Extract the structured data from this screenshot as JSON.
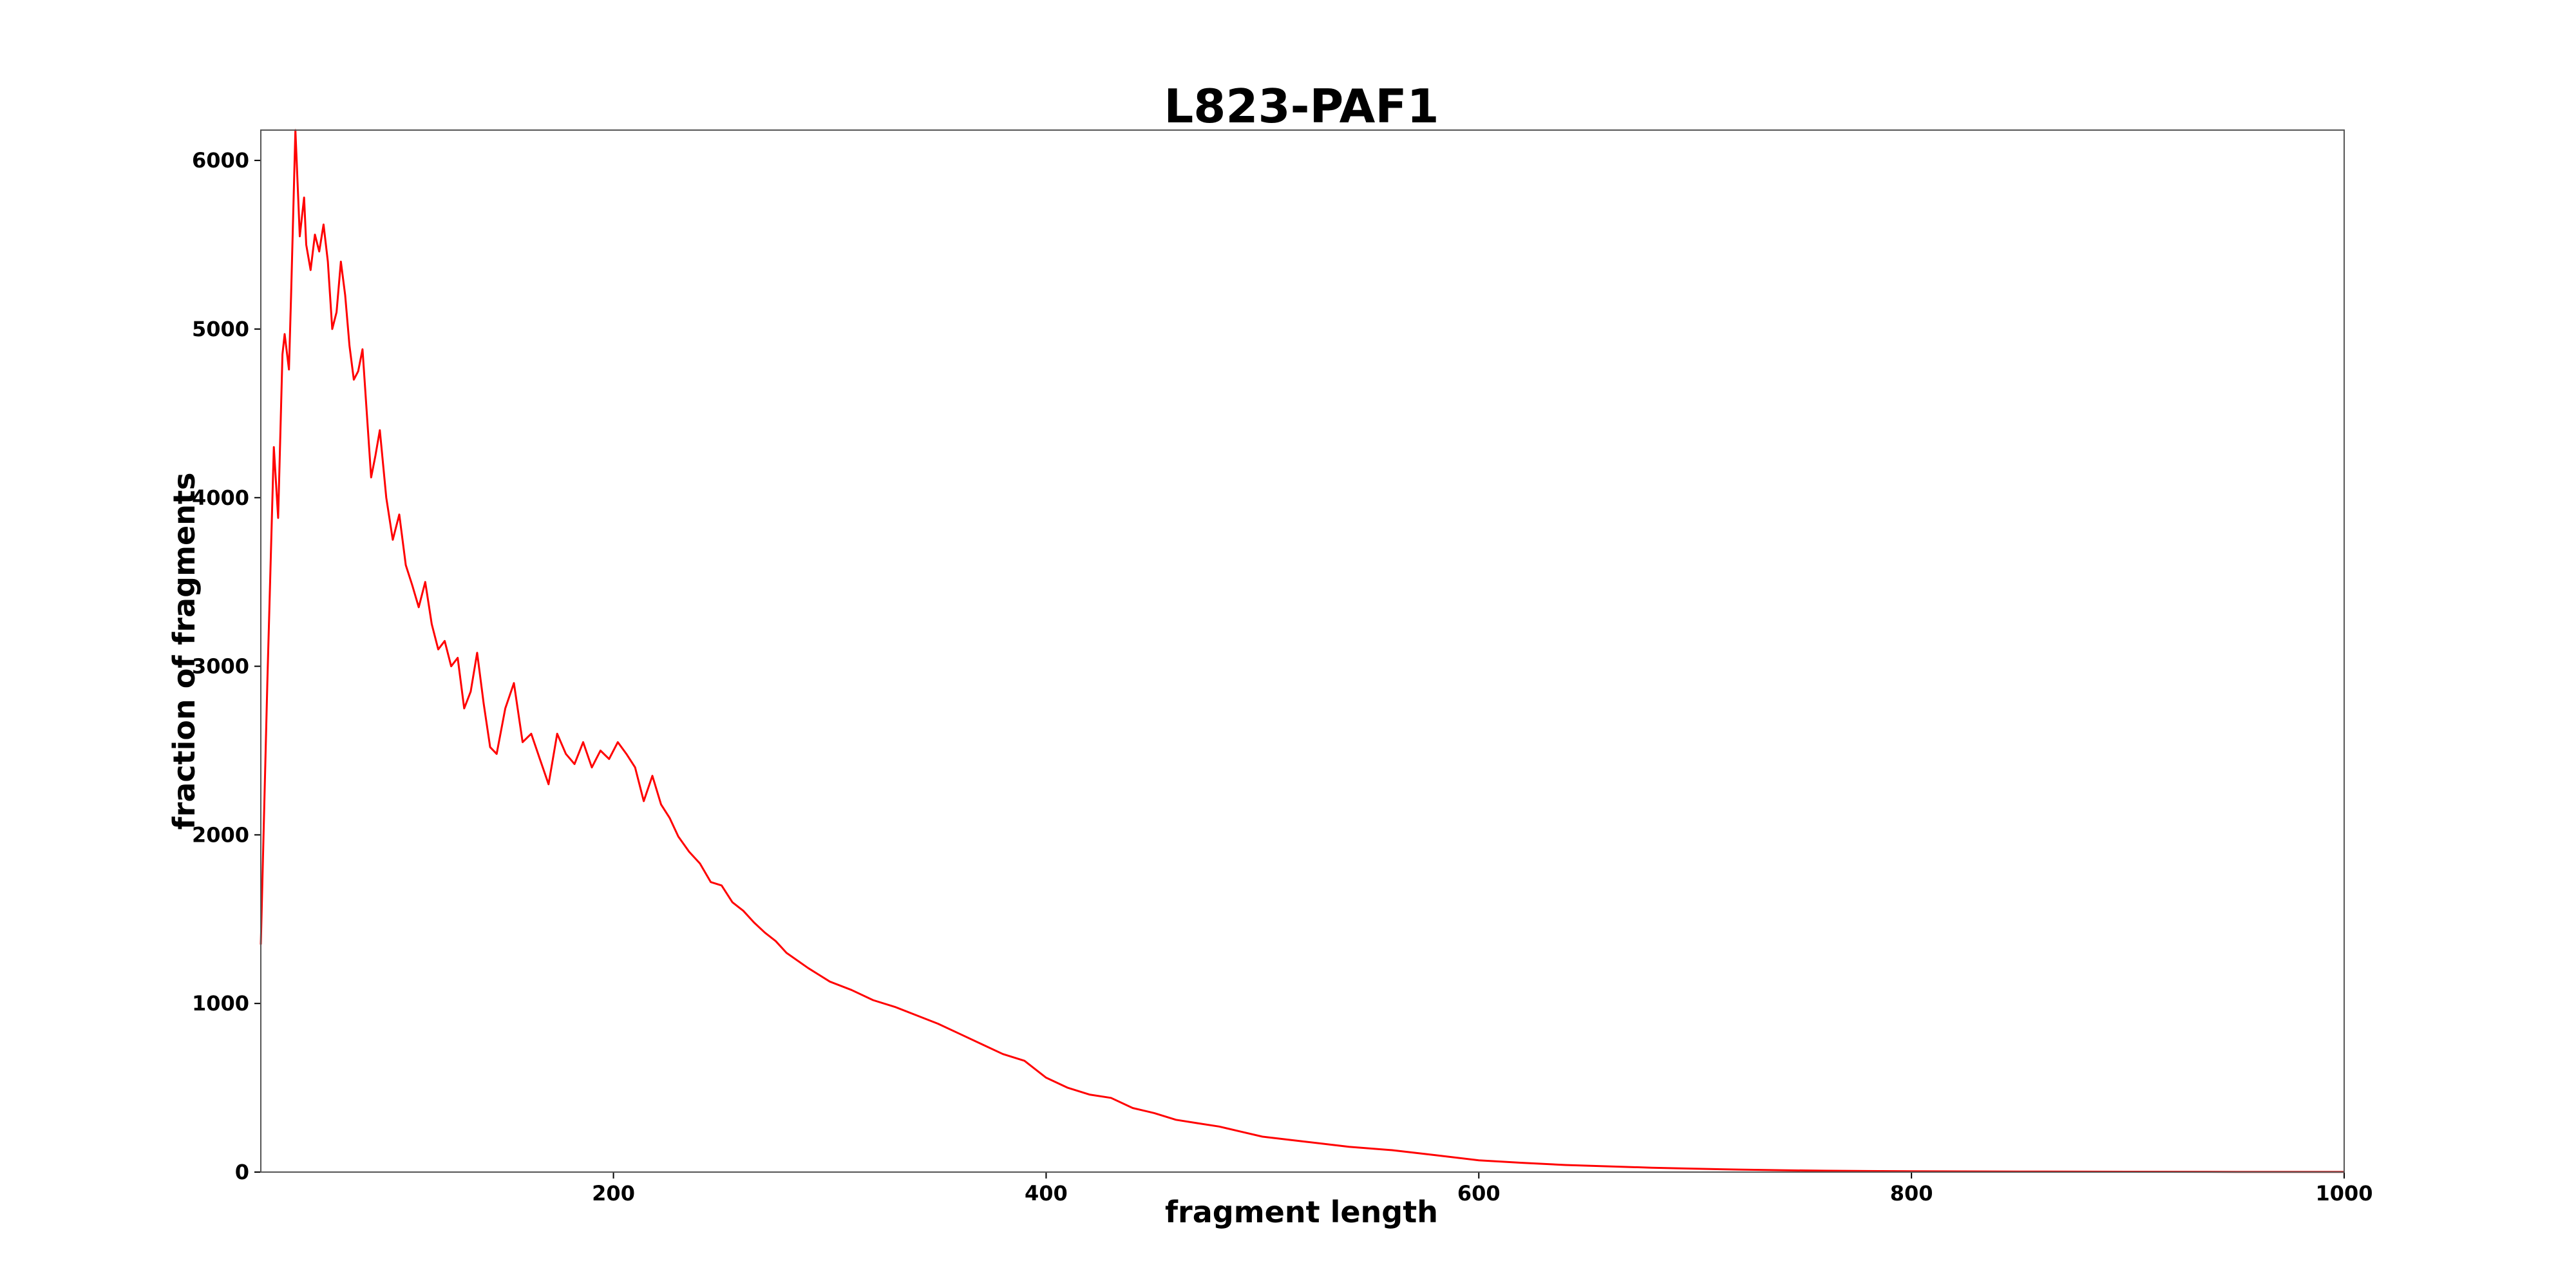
{
  "chart_data": {
    "type": "line",
    "title": "L823-PAF1",
    "xlabel": "fragment length",
    "ylabel": "fraction of fragments",
    "xlim": [
      37,
      1000
    ],
    "ylim": [
      0,
      6180
    ],
    "x_ticks": [
      "200",
      "400",
      "600",
      "800",
      "1000"
    ],
    "x_tick_values": [
      200,
      400,
      600,
      800,
      1000
    ],
    "y_ticks": [
      "0",
      "1000",
      "2000",
      "3000",
      "4000",
      "5000",
      "6000"
    ],
    "y_tick_values": [
      0,
      1000,
      2000,
      3000,
      4000,
      5000,
      6000
    ],
    "grid": false,
    "series": [
      {
        "color": "#ff0000",
        "x": [
          37,
          40,
          43,
          45,
          47,
          48,
          50,
          51,
          53,
          55,
          57,
          58,
          60,
          62,
          64,
          66,
          68,
          70,
          72,
          74,
          76,
          78,
          80,
          82,
          84,
          86,
          88,
          90,
          92,
          95,
          98,
          101,
          104,
          107,
          110,
          113,
          116,
          119,
          122,
          125,
          128,
          131,
          134,
          137,
          140,
          143,
          146,
          150,
          154,
          158,
          162,
          166,
          170,
          174,
          178,
          182,
          186,
          190,
          194,
          198,
          202,
          206,
          210,
          214,
          218,
          222,
          226,
          230,
          235,
          240,
          245,
          250,
          255,
          260,
          265,
          270,
          275,
          280,
          290,
          300,
          310,
          320,
          330,
          340,
          350,
          360,
          370,
          380,
          390,
          400,
          410,
          420,
          430,
          440,
          450,
          460,
          470,
          480,
          490,
          500,
          520,
          540,
          560,
          580,
          600,
          620,
          640,
          660,
          680,
          700,
          720,
          740,
          760,
          780,
          800,
          850,
          900,
          950,
          1000
        ],
        "y": [
          1350,
          2900,
          4300,
          3880,
          4850,
          4970,
          4760,
          5200,
          6180,
          5550,
          5780,
          5500,
          5350,
          5560,
          5460,
          5620,
          5400,
          5000,
          5100,
          5400,
          5200,
          4900,
          4700,
          4750,
          4880,
          4500,
          4120,
          4250,
          4400,
          4000,
          3750,
          3900,
          3600,
          3480,
          3350,
          3500,
          3250,
          3100,
          3150,
          3000,
          3050,
          2750,
          2850,
          3080,
          2780,
          2520,
          2480,
          2750,
          2900,
          2550,
          2600,
          2450,
          2300,
          2600,
          2480,
          2420,
          2550,
          2400,
          2500,
          2450,
          2550,
          2480,
          2400,
          2200,
          2350,
          2180,
          2100,
          1990,
          1900,
          1830,
          1720,
          1700,
          1600,
          1550,
          1480,
          1420,
          1370,
          1300,
          1210,
          1130,
          1080,
          1020,
          980,
          930,
          880,
          820,
          760,
          700,
          660,
          560,
          500,
          460,
          440,
          380,
          350,
          310,
          290,
          270,
          240,
          210,
          180,
          150,
          130,
          100,
          70,
          55,
          42,
          34,
          26,
          20,
          15,
          11,
          8,
          6,
          5,
          3,
          2,
          1,
          1
        ]
      }
    ]
  }
}
